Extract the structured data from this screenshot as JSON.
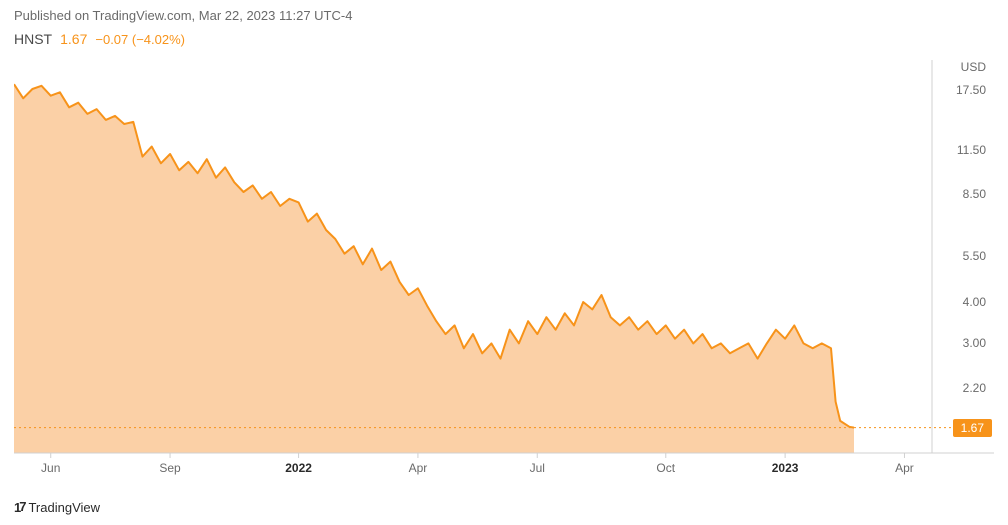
{
  "header": {
    "publish_text": "Published on TradingView.com, Mar 22, 2023 11:27 UTC-4"
  },
  "ticker": {
    "symbol": "HNST",
    "price": "1.67",
    "change": "−0.07 (−4.02%)"
  },
  "chart": {
    "type": "area",
    "currency_label": "USD",
    "line_color": "#f7931a",
    "fill_color": "#f9c088",
    "fill_opacity": 0.75,
    "background_color": "#ffffff",
    "border_color": "#d0d0d0",
    "yscale": "log",
    "ylim": [
      1.4,
      19
    ],
    "yticks": [
      17.5,
      11.5,
      8.5,
      5.5,
      4.0,
      3.0,
      2.2,
      1.67
    ],
    "ytick_labels": [
      "17.50",
      "11.50",
      "8.50",
      "5.50",
      "4.00",
      "3.00",
      "2.20",
      "1.67"
    ],
    "current_price": 1.67,
    "current_price_label": "1.67",
    "xlabels": [
      {
        "t": 0.04,
        "label": "Jun",
        "bold": false
      },
      {
        "t": 0.17,
        "label": "Sep",
        "bold": false
      },
      {
        "t": 0.31,
        "label": "2022",
        "bold": true
      },
      {
        "t": 0.44,
        "label": "Apr",
        "bold": false
      },
      {
        "t": 0.57,
        "label": "Jul",
        "bold": false
      },
      {
        "t": 0.71,
        "label": "Oct",
        "bold": false
      },
      {
        "t": 0.84,
        "label": "2023",
        "bold": true
      },
      {
        "t": 0.97,
        "label": "Apr",
        "bold": false
      }
    ],
    "series": [
      {
        "t": 0.0,
        "v": 18.2
      },
      {
        "t": 0.01,
        "v": 16.5
      },
      {
        "t": 0.02,
        "v": 17.6
      },
      {
        "t": 0.03,
        "v": 18.0
      },
      {
        "t": 0.04,
        "v": 16.8
      },
      {
        "t": 0.05,
        "v": 17.2
      },
      {
        "t": 0.06,
        "v": 15.5
      },
      {
        "t": 0.07,
        "v": 16.0
      },
      {
        "t": 0.08,
        "v": 14.8
      },
      {
        "t": 0.09,
        "v": 15.3
      },
      {
        "t": 0.1,
        "v": 14.2
      },
      {
        "t": 0.11,
        "v": 14.6
      },
      {
        "t": 0.12,
        "v": 13.8
      },
      {
        "t": 0.13,
        "v": 14.0
      },
      {
        "t": 0.14,
        "v": 11.0
      },
      {
        "t": 0.15,
        "v": 11.8
      },
      {
        "t": 0.16,
        "v": 10.5
      },
      {
        "t": 0.17,
        "v": 11.2
      },
      {
        "t": 0.18,
        "v": 10.0
      },
      {
        "t": 0.19,
        "v": 10.6
      },
      {
        "t": 0.2,
        "v": 9.8
      },
      {
        "t": 0.21,
        "v": 10.8
      },
      {
        "t": 0.22,
        "v": 9.5
      },
      {
        "t": 0.23,
        "v": 10.2
      },
      {
        "t": 0.24,
        "v": 9.2
      },
      {
        "t": 0.25,
        "v": 8.6
      },
      {
        "t": 0.26,
        "v": 9.0
      },
      {
        "t": 0.27,
        "v": 8.2
      },
      {
        "t": 0.28,
        "v": 8.6
      },
      {
        "t": 0.29,
        "v": 7.8
      },
      {
        "t": 0.3,
        "v": 8.2
      },
      {
        "t": 0.31,
        "v": 8.0
      },
      {
        "t": 0.32,
        "v": 7.0
      },
      {
        "t": 0.33,
        "v": 7.4
      },
      {
        "t": 0.34,
        "v": 6.6
      },
      {
        "t": 0.35,
        "v": 6.2
      },
      {
        "t": 0.36,
        "v": 5.6
      },
      {
        "t": 0.37,
        "v": 5.9
      },
      {
        "t": 0.38,
        "v": 5.2
      },
      {
        "t": 0.39,
        "v": 5.8
      },
      {
        "t": 0.4,
        "v": 5.0
      },
      {
        "t": 0.41,
        "v": 5.3
      },
      {
        "t": 0.42,
        "v": 4.6
      },
      {
        "t": 0.43,
        "v": 4.2
      },
      {
        "t": 0.44,
        "v": 4.4
      },
      {
        "t": 0.45,
        "v": 3.9
      },
      {
        "t": 0.46,
        "v": 3.5
      },
      {
        "t": 0.47,
        "v": 3.2
      },
      {
        "t": 0.48,
        "v": 3.4
      },
      {
        "t": 0.49,
        "v": 2.9
      },
      {
        "t": 0.5,
        "v": 3.2
      },
      {
        "t": 0.51,
        "v": 2.8
      },
      {
        "t": 0.52,
        "v": 3.0
      },
      {
        "t": 0.53,
        "v": 2.7
      },
      {
        "t": 0.54,
        "v": 3.3
      },
      {
        "t": 0.55,
        "v": 3.0
      },
      {
        "t": 0.56,
        "v": 3.5
      },
      {
        "t": 0.57,
        "v": 3.2
      },
      {
        "t": 0.58,
        "v": 3.6
      },
      {
        "t": 0.59,
        "v": 3.3
      },
      {
        "t": 0.6,
        "v": 3.7
      },
      {
        "t": 0.61,
        "v": 3.4
      },
      {
        "t": 0.62,
        "v": 4.0
      },
      {
        "t": 0.63,
        "v": 3.8
      },
      {
        "t": 0.64,
        "v": 4.2
      },
      {
        "t": 0.65,
        "v": 3.6
      },
      {
        "t": 0.66,
        "v": 3.4
      },
      {
        "t": 0.67,
        "v": 3.6
      },
      {
        "t": 0.68,
        "v": 3.3
      },
      {
        "t": 0.69,
        "v": 3.5
      },
      {
        "t": 0.7,
        "v": 3.2
      },
      {
        "t": 0.71,
        "v": 3.4
      },
      {
        "t": 0.72,
        "v": 3.1
      },
      {
        "t": 0.73,
        "v": 3.3
      },
      {
        "t": 0.74,
        "v": 3.0
      },
      {
        "t": 0.75,
        "v": 3.2
      },
      {
        "t": 0.76,
        "v": 2.9
      },
      {
        "t": 0.77,
        "v": 3.0
      },
      {
        "t": 0.78,
        "v": 2.8
      },
      {
        "t": 0.79,
        "v": 2.9
      },
      {
        "t": 0.8,
        "v": 3.0
      },
      {
        "t": 0.81,
        "v": 2.7
      },
      {
        "t": 0.82,
        "v": 3.0
      },
      {
        "t": 0.83,
        "v": 3.3
      },
      {
        "t": 0.84,
        "v": 3.1
      },
      {
        "t": 0.85,
        "v": 3.4
      },
      {
        "t": 0.86,
        "v": 3.0
      },
      {
        "t": 0.87,
        "v": 2.9
      },
      {
        "t": 0.88,
        "v": 3.0
      },
      {
        "t": 0.89,
        "v": 2.9
      },
      {
        "t": 0.895,
        "v": 2.0
      },
      {
        "t": 0.9,
        "v": 1.75
      },
      {
        "t": 0.91,
        "v": 1.68
      },
      {
        "t": 0.915,
        "v": 1.67
      }
    ]
  },
  "footer": {
    "logo_text": "TradingView"
  }
}
